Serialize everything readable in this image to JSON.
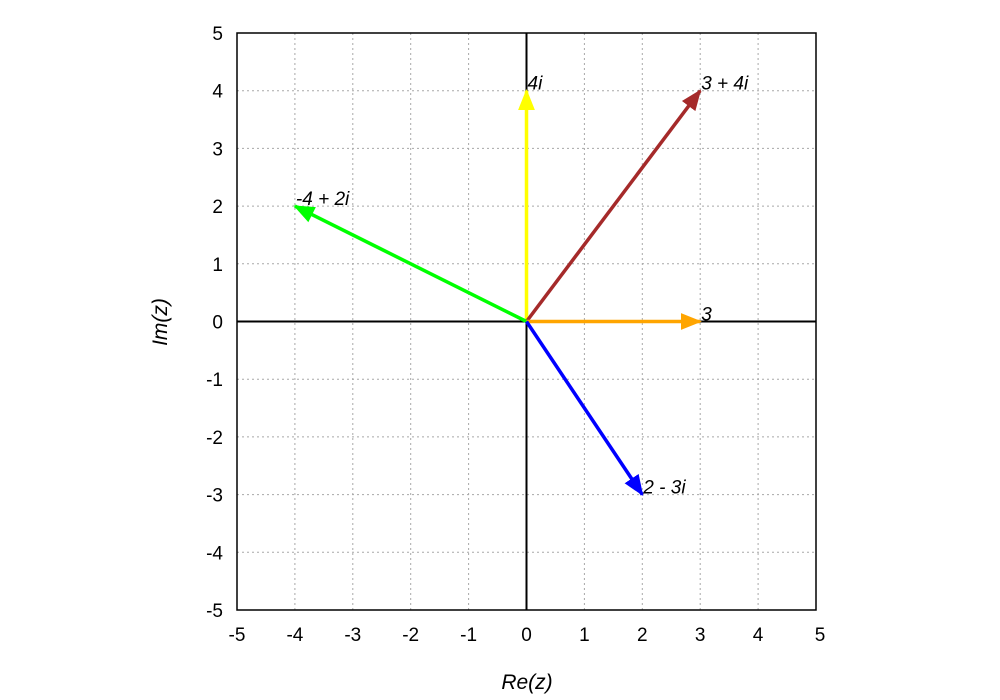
{
  "chart_data": {
    "type": "scatter",
    "title": "",
    "xlabel": "Re(z)",
    "ylabel": "Im(z)",
    "xlim": [
      -5,
      5
    ],
    "ylim": [
      -5,
      5
    ],
    "xticks": [
      "-5",
      "-4",
      "-3",
      "-2",
      "-1",
      "0",
      "1",
      "2",
      "3",
      "4",
      "5"
    ],
    "yticks": [
      "5",
      "4",
      "3",
      "2",
      "1",
      "0",
      "-1",
      "-2",
      "-3",
      "-4",
      "-5"
    ],
    "grid": true,
    "vectors": [
      {
        "label": "4i",
        "x": 0,
        "y": 4,
        "color": "#ffff00"
      },
      {
        "label": "3 + 4i",
        "x": 3,
        "y": 4,
        "color": "#a52a2a"
      },
      {
        "label": "-4 + 2i",
        "x": -4,
        "y": 2,
        "color": "#00ff00"
      },
      {
        "label": "3",
        "x": 3,
        "y": 0,
        "color": "#ffa500"
      },
      {
        "label": "2 - 3i",
        "x": 2,
        "y": -3,
        "color": "#0000ff"
      }
    ]
  }
}
